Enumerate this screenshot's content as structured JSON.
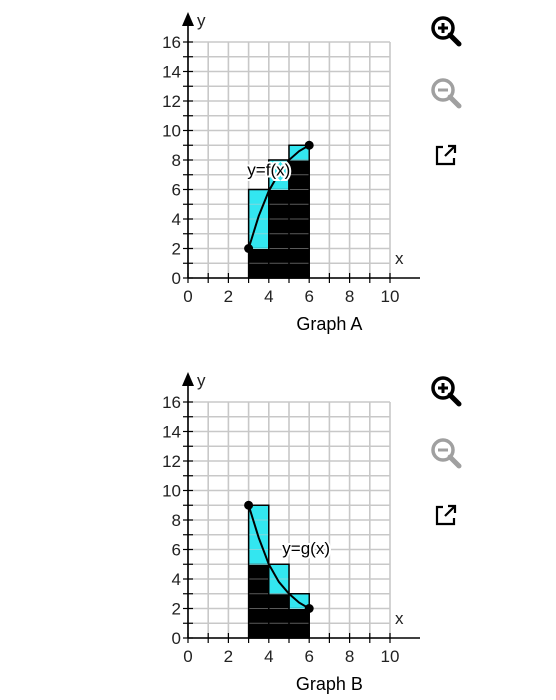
{
  "chart_data": [
    {
      "type": "bar",
      "title": "Graph A",
      "xlabel": "x",
      "ylabel": "y",
      "xlim": [
        0,
        10
      ],
      "ylim": [
        0,
        16
      ],
      "x_ticks": [
        "0",
        "2",
        "4",
        "6",
        "8",
        "10"
      ],
      "y_ticks": [
        "0",
        "2",
        "4",
        "6",
        "8",
        "10",
        "12",
        "14",
        "16"
      ],
      "grid": true,
      "curve_label": "y=f(x)",
      "curve": {
        "x": [
          3,
          3.5,
          4,
          4.5,
          5,
          5.5,
          6
        ],
        "y": [
          2,
          4.2,
          5.9,
          7.1,
          8.0,
          8.6,
          9
        ]
      },
      "endpoints": [
        {
          "x": 3,
          "y": 2
        },
        {
          "x": 6,
          "y": 9
        }
      ],
      "lower_rects": [
        {
          "x0": 3,
          "x1": 4,
          "h": 2
        },
        {
          "x0": 4,
          "x1": 5,
          "h": 6
        },
        {
          "x0": 5,
          "x1": 6,
          "h": 8
        }
      ],
      "upper_rects": [
        {
          "x0": 3,
          "x1": 4,
          "h": 6
        },
        {
          "x0": 4,
          "x1": 5,
          "h": 8
        },
        {
          "x0": 5,
          "x1": 6,
          "h": 9
        }
      ],
      "colors": {
        "upper": "#33e6f0",
        "lower": "#000000",
        "grid": "#c8c8c8"
      }
    },
    {
      "type": "bar",
      "title": "Graph B",
      "xlabel": "x",
      "ylabel": "y",
      "xlim": [
        0,
        10
      ],
      "ylim": [
        0,
        16
      ],
      "x_ticks": [
        "0",
        "2",
        "4",
        "6",
        "8",
        "10"
      ],
      "y_ticks": [
        "0",
        "2",
        "4",
        "6",
        "8",
        "10",
        "12",
        "14",
        "16"
      ],
      "grid": true,
      "curve_label": "y=g(x)",
      "curve": {
        "x": [
          3,
          3.5,
          4,
          4.5,
          5,
          5.5,
          6
        ],
        "y": [
          9,
          6.8,
          5.0,
          3.8,
          3.0,
          2.4,
          2
        ]
      },
      "endpoints": [
        {
          "x": 3,
          "y": 9
        },
        {
          "x": 6,
          "y": 2
        }
      ],
      "lower_rects": [
        {
          "x0": 3,
          "x1": 4,
          "h": 5
        },
        {
          "x0": 4,
          "x1": 5,
          "h": 3
        },
        {
          "x0": 5,
          "x1": 6,
          "h": 2
        }
      ],
      "upper_rects": [
        {
          "x0": 3,
          "x1": 4,
          "h": 9
        },
        {
          "x0": 4,
          "x1": 5,
          "h": 5
        },
        {
          "x0": 5,
          "x1": 6,
          "h": 3
        }
      ],
      "colors": {
        "upper": "#33e6f0",
        "lower": "#000000",
        "grid": "#c8c8c8"
      }
    }
  ],
  "toolbar_icons": [
    "zoom-in-icon",
    "zoom-out-icon",
    "open-external-icon"
  ],
  "icon_colors": {
    "zoom_in": "#000000",
    "zoom_out": "#a0a0a0",
    "open": "#000000"
  }
}
